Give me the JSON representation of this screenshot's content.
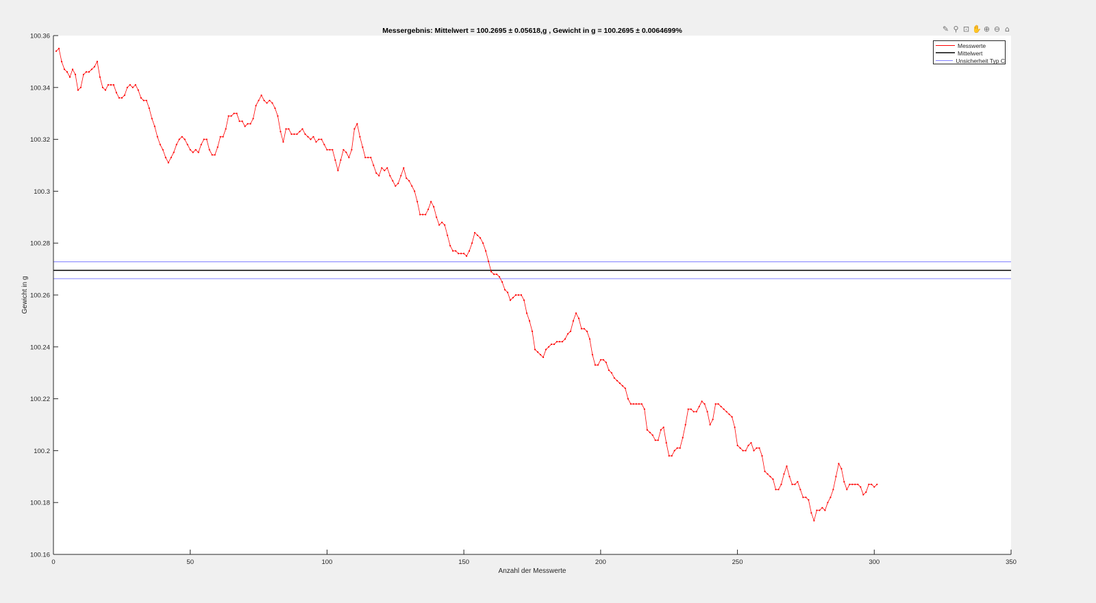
{
  "toolbar": {
    "icons": [
      {
        "name": "brush-icon",
        "glyph": "✎"
      },
      {
        "name": "data-tip-icon",
        "glyph": "⚲"
      },
      {
        "name": "export-icon",
        "glyph": "⊡"
      },
      {
        "name": "pan-hand-icon",
        "glyph": "✋"
      },
      {
        "name": "zoom-in-icon",
        "glyph": "⊕"
      },
      {
        "name": "zoom-out-icon",
        "glyph": "⊖"
      },
      {
        "name": "home-icon",
        "glyph": "⌂"
      }
    ]
  },
  "colors": {
    "figure_bg": "#f0f0f0",
    "axes_bg": "#ffffff",
    "axis_color": "#262626",
    "measurements": "#ff0000",
    "mean": "#404040",
    "uncertainty": "#8080ff"
  },
  "chart_data": {
    "type": "line",
    "title": "Messergebnis: Mittelwert = 100.2695 ± 0.05618,g , Gewicht in g = 100.2695 ± 0.0064699%",
    "xlabel": "Anzahl der Messwerte",
    "ylabel": "Gewicht in g",
    "xlim": [
      0,
      350
    ],
    "ylim": [
      100.16,
      100.36
    ],
    "xticks": [
      0,
      50,
      100,
      150,
      200,
      250,
      300,
      350
    ],
    "xtick_labels": [
      "0",
      "50",
      "100",
      "150",
      "200",
      "250",
      "300",
      "350"
    ],
    "yticks": [
      100.16,
      100.18,
      100.2,
      100.22,
      100.24,
      100.26,
      100.28,
      100.3,
      100.32,
      100.34,
      100.36
    ],
    "ytick_labels": [
      "100.16",
      "100.18",
      "100.2",
      "100.22",
      "100.24",
      "100.26",
      "100.28",
      "100.3",
      "100.32",
      "100.34",
      "100.36"
    ],
    "grid": false,
    "legend_position": "top-right",
    "legend": [
      "Messwerte",
      "Mittelwert",
      "Unsicherheit Typ C"
    ],
    "series": [
      {
        "name": "Messwerte",
        "style": "line-with-markers",
        "x": [
          1,
          2,
          3,
          4,
          5,
          6,
          7,
          8,
          9,
          10,
          11,
          12,
          13,
          14,
          15,
          16,
          17,
          18,
          19,
          20,
          21,
          22,
          23,
          24,
          25,
          26,
          27,
          28,
          29,
          30,
          31,
          32,
          33,
          34,
          35,
          36,
          37,
          38,
          39,
          40,
          41,
          42,
          43,
          44,
          45,
          46,
          47,
          48,
          49,
          50,
          51,
          52,
          53,
          54,
          55,
          56,
          57,
          58,
          59,
          60,
          61,
          62,
          63,
          64,
          65,
          66,
          67,
          68,
          69,
          70,
          71,
          72,
          73,
          74,
          75,
          76,
          77,
          78,
          79,
          80,
          81,
          82,
          83,
          84,
          85,
          86,
          87,
          88,
          89,
          90,
          91,
          92,
          93,
          94,
          95,
          96,
          97,
          98,
          99,
          100,
          101,
          102,
          103,
          104,
          105,
          106,
          107,
          108,
          109,
          110,
          111,
          112,
          113,
          114,
          115,
          116,
          117,
          118,
          119,
          120,
          121,
          122,
          123,
          124,
          125,
          126,
          127,
          128,
          129,
          130,
          131,
          132,
          133,
          134,
          135,
          136,
          137,
          138,
          139,
          140,
          141,
          142,
          143,
          144,
          145,
          146,
          147,
          148,
          149,
          150,
          151,
          152,
          153,
          154,
          155,
          156,
          157,
          158,
          159,
          160,
          161,
          162,
          163,
          164,
          165,
          166,
          167,
          168,
          169,
          170,
          171,
          172,
          173,
          174,
          175,
          176,
          177,
          178,
          179,
          180,
          181,
          182,
          183,
          184,
          185,
          186,
          187,
          188,
          189,
          190,
          191,
          192,
          193,
          194,
          195,
          196,
          197,
          198,
          199,
          200,
          201,
          202,
          203,
          204,
          205,
          206,
          207,
          208,
          209,
          210,
          211,
          212,
          213,
          214,
          215,
          216,
          217,
          218,
          219,
          220,
          221,
          222,
          223,
          224,
          225,
          226,
          227,
          228,
          229,
          230,
          231,
          232,
          233,
          234,
          235,
          236,
          237,
          238,
          239,
          240,
          241,
          242,
          243,
          244,
          245,
          246,
          247,
          248,
          249,
          250,
          251,
          252,
          253,
          254,
          255,
          256,
          257,
          258,
          259,
          260,
          261,
          262,
          263,
          264,
          265,
          266,
          267,
          268,
          269,
          270,
          271,
          272,
          273,
          274,
          275,
          276,
          277,
          278,
          279,
          280,
          281,
          282,
          283,
          284,
          285,
          286,
          287,
          288,
          289,
          290,
          291,
          292,
          293,
          294,
          295,
          296,
          297,
          298,
          299,
          300,
          301
        ],
        "y": [
          100.354,
          100.355,
          100.35,
          100.347,
          100.346,
          100.344,
          100.347,
          100.345,
          100.339,
          100.34,
          100.345,
          100.346,
          100.346,
          100.347,
          100.348,
          100.35,
          100.344,
          100.34,
          100.339,
          100.341,
          100.341,
          100.341,
          100.338,
          100.336,
          100.336,
          100.337,
          100.34,
          100.341,
          100.34,
          100.341,
          100.339,
          100.336,
          100.335,
          100.335,
          100.332,
          100.328,
          100.325,
          100.321,
          100.318,
          100.316,
          100.313,
          100.311,
          100.313,
          100.315,
          100.318,
          100.32,
          100.321,
          100.32,
          100.318,
          100.316,
          100.315,
          100.316,
          100.315,
          100.318,
          100.32,
          100.32,
          100.316,
          100.314,
          100.314,
          100.317,
          100.321,
          100.321,
          100.324,
          100.329,
          100.329,
          100.33,
          100.33,
          100.327,
          100.327,
          100.325,
          100.326,
          100.326,
          100.328,
          100.333,
          100.335,
          100.337,
          100.335,
          100.334,
          100.335,
          100.334,
          100.332,
          100.329,
          100.323,
          100.319,
          100.324,
          100.324,
          100.322,
          100.322,
          100.322,
          100.323,
          100.324,
          100.322,
          100.321,
          100.32,
          100.321,
          100.319,
          100.32,
          100.32,
          100.318,
          100.316,
          100.316,
          100.316,
          100.312,
          100.308,
          100.312,
          100.316,
          100.315,
          100.313,
          100.316,
          100.324,
          100.326,
          100.321,
          100.317,
          100.313,
          100.313,
          100.313,
          100.31,
          100.307,
          100.306,
          100.309,
          100.308,
          100.309,
          100.306,
          100.304,
          100.302,
          100.303,
          100.306,
          100.309,
          100.305,
          100.304,
          100.302,
          100.3,
          100.296,
          100.291,
          100.291,
          100.291,
          100.293,
          100.296,
          100.294,
          100.29,
          100.287,
          100.288,
          100.287,
          100.283,
          100.279,
          100.277,
          100.277,
          100.276,
          100.276,
          100.276,
          100.275,
          100.277,
          100.28,
          100.284,
          100.283,
          100.282,
          100.28,
          100.277,
          100.273,
          100.269,
          100.268,
          100.268,
          100.267,
          100.265,
          100.262,
          100.261,
          100.258,
          100.259,
          100.26,
          100.26,
          100.26,
          100.258,
          100.253,
          100.25,
          100.246,
          100.239,
          100.238,
          100.237,
          100.236,
          100.239,
          100.24,
          100.241,
          100.241,
          100.242,
          100.242,
          100.242,
          100.243,
          100.245,
          100.246,
          100.25,
          100.253,
          100.251,
          100.247,
          100.247,
          100.246,
          100.243,
          100.237,
          100.233,
          100.233,
          100.235,
          100.235,
          100.234,
          100.231,
          100.23,
          100.228,
          100.227,
          100.226,
          100.225,
          100.224,
          100.22,
          100.218,
          100.218,
          100.218,
          100.218,
          100.218,
          100.216,
          100.208,
          100.207,
          100.206,
          100.204,
          100.204,
          100.208,
          100.209,
          100.203,
          100.198,
          100.198,
          100.2,
          100.201,
          100.201,
          100.205,
          100.21,
          100.216,
          100.216,
          100.215,
          100.215,
          100.217,
          100.219,
          100.218,
          100.215,
          100.21,
          100.212,
          100.218,
          100.218,
          100.217,
          100.216,
          100.215,
          100.214,
          100.213,
          100.209,
          100.202,
          100.201,
          100.2,
          100.2,
          100.202,
          100.203,
          100.2,
          100.201,
          100.201,
          100.198,
          100.192,
          100.191,
          100.19,
          100.189,
          100.185,
          100.185,
          100.187,
          100.191,
          100.194,
          100.19,
          100.187,
          100.187,
          100.188,
          100.185,
          100.182,
          100.182,
          100.181,
          100.176,
          100.173,
          100.177,
          100.177,
          100.178,
          100.177,
          100.18,
          100.182,
          100.185,
          100.19,
          100.195,
          100.193,
          100.188,
          100.185,
          100.187,
          100.187,
          100.187,
          100.187,
          100.186,
          100.183,
          100.184,
          100.187,
          100.187,
          100.186,
          100.187
        ],
        "color": "#ff0000"
      },
      {
        "name": "Mittelwert",
        "style": "line",
        "y_const": 100.2695,
        "color": "#404040"
      },
      {
        "name": "Unsicherheit Typ C",
        "style": "line",
        "y_const": [
          100.2728,
          100.2663
        ],
        "color": "#8080ff"
      }
    ]
  }
}
